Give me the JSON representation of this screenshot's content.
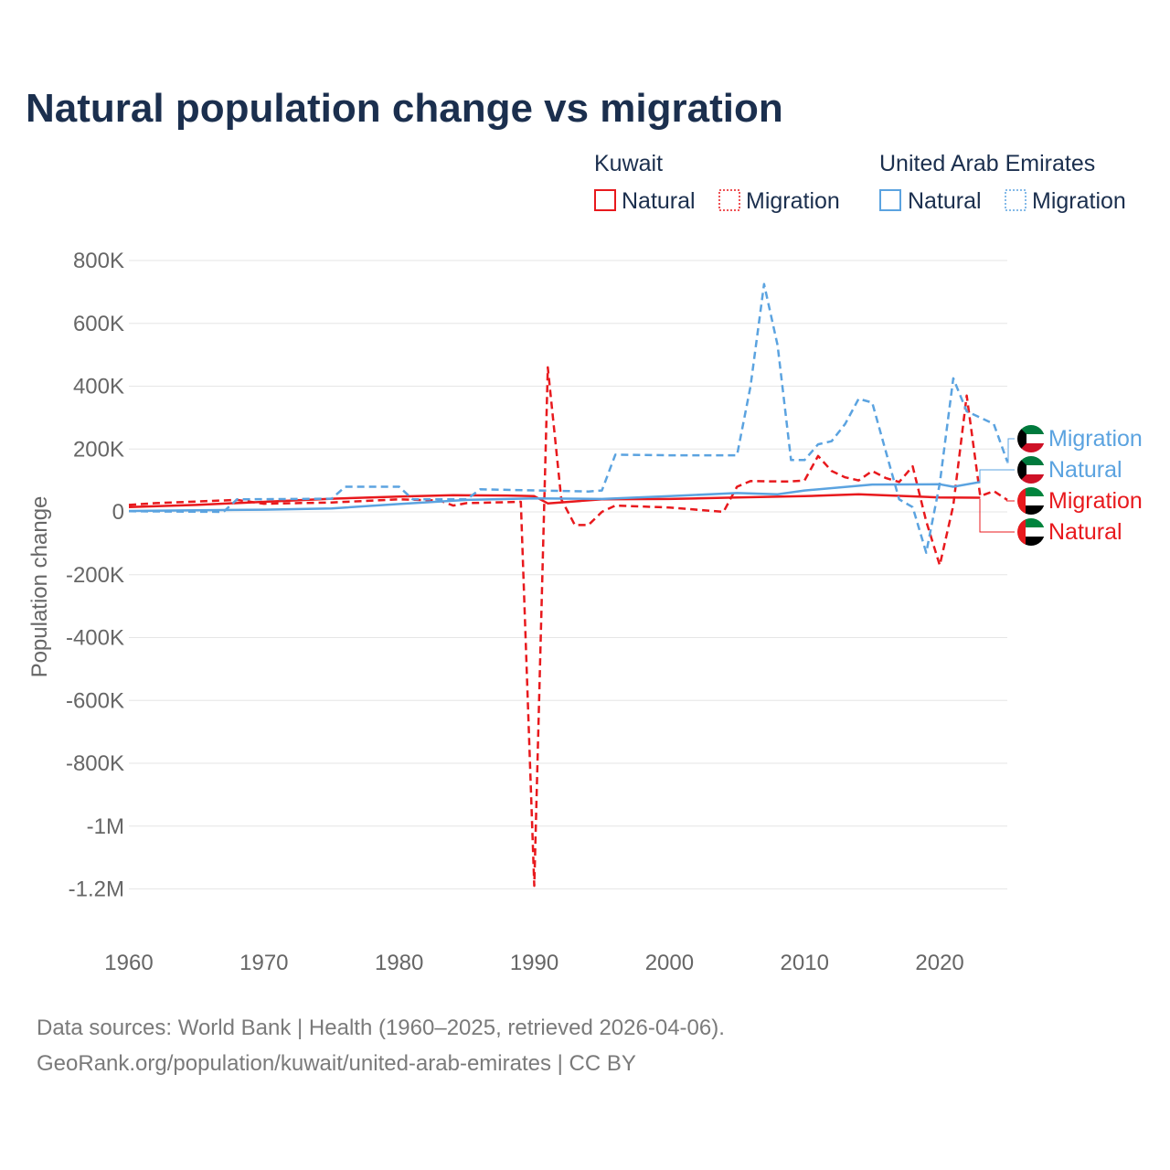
{
  "title": "Natural population change vs migration",
  "legend": {
    "groups": [
      {
        "name": "Kuwait",
        "color": "#e8191d",
        "items": [
          {
            "label": "Natural",
            "style": "solid"
          },
          {
            "label": "Migration",
            "style": "dotted"
          }
        ]
      },
      {
        "name": "United Arab Emirates",
        "color": "#5ba3e0",
        "items": [
          {
            "label": "Natural",
            "style": "solid"
          },
          {
            "label": "Migration",
            "style": "dotted"
          }
        ]
      }
    ]
  },
  "source": {
    "line1": "Data sources: World Bank | Health (1960–2025, retrieved 2026-04-06).",
    "line2": "GeoRank.org/population/kuwait/united-arab-emirates | CC BY"
  },
  "end_labels": [
    {
      "text": "Migration",
      "color": "#5ba3e0",
      "flag": "kuwait"
    },
    {
      "text": "Natural",
      "color": "#5ba3e0",
      "flag": "kuwait"
    },
    {
      "text": "Migration",
      "color": "#e8191d",
      "flag": "uae"
    },
    {
      "text": "Natural",
      "color": "#e8191d",
      "flag": "uae"
    }
  ],
  "chart_data": {
    "type": "line",
    "title": "Natural population change vs migration",
    "xlabel": "",
    "ylabel": "Population change",
    "xlim": [
      1960,
      2025
    ],
    "ylim": [
      -1300000,
      800000
    ],
    "x_ticks": [
      1960,
      1970,
      1980,
      1990,
      2000,
      2010,
      2020
    ],
    "x_tick_labels": [
      "1960",
      "1970",
      "1980",
      "1990",
      "2000",
      "2010",
      "2020"
    ],
    "y_ticks": [
      800000,
      600000,
      400000,
      200000,
      0,
      -200000,
      -400000,
      -600000,
      -800000,
      -1000000,
      -1200000
    ],
    "y_tick_labels": [
      "800K",
      "600K",
      "400K",
      "200K",
      "0",
      "-200K",
      "-400K",
      "-600K",
      "-800K",
      "-1M",
      "-1.2M"
    ],
    "grid": true,
    "series": [
      {
        "name": "Kuwait Natural",
        "country": "Kuwait",
        "kind": "Natural",
        "color": "#e8191d",
        "dash": "solid",
        "x": [
          1960,
          1965,
          1970,
          1975,
          1980,
          1984,
          1988,
          1990,
          1991,
          1995,
          2000,
          2005,
          2010,
          2014,
          2020,
          2023
        ],
        "y": [
          15000,
          22000,
          32000,
          42000,
          49000,
          53000,
          52000,
          50000,
          27000,
          40000,
          41000,
          46000,
          50000,
          56000,
          46000,
          45000
        ]
      },
      {
        "name": "Kuwait Migration",
        "country": "Kuwait",
        "kind": "Migration",
        "color": "#e8191d",
        "dash": "dashed",
        "x": [
          1960,
          1962,
          1968,
          1970,
          1975,
          1980,
          1983,
          1984,
          1985,
          1987,
          1989,
          1990,
          1991,
          1992,
          1993,
          1994,
          1995,
          1996,
          2000,
          2004,
          2005,
          2006,
          2008,
          2009,
          2010,
          2011,
          2012,
          2013,
          2014,
          2015,
          2016,
          2017,
          2018,
          2019,
          2020,
          2021,
          2022,
          2023,
          2024,
          2025
        ],
        "y": [
          22000,
          28000,
          38000,
          26000,
          30000,
          40000,
          36000,
          20000,
          28000,
          30000,
          32000,
          -1190000,
          460000,
          40000,
          -42000,
          -42000,
          0,
          20000,
          14000,
          0,
          80000,
          98000,
          97000,
          97000,
          100000,
          178000,
          130000,
          110000,
          100000,
          130000,
          108000,
          95000,
          145000,
          -30000,
          -170000,
          20000,
          370000,
          50000,
          66000,
          38000
        ]
      },
      {
        "name": "UAE Natural",
        "country": "United Arab Emirates",
        "kind": "Natural",
        "color": "#5ba3e0",
        "dash": "solid",
        "x": [
          1960,
          1965,
          1970,
          1975,
          1980,
          1985,
          1990,
          1995,
          2000,
          2005,
          2008,
          2010,
          2015,
          2020,
          2021,
          2023
        ],
        "y": [
          3000,
          5000,
          7000,
          11000,
          25000,
          38000,
          43000,
          41000,
          50000,
          60000,
          56000,
          68000,
          87000,
          88000,
          80000,
          95000
        ]
      },
      {
        "name": "UAE Migration",
        "country": "United Arab Emirates",
        "kind": "Migration",
        "color": "#5ba3e0",
        "dash": "dashed",
        "x": [
          1960,
          1967,
          1968,
          1975,
          1976,
          1980,
          1981,
          1985,
          1986,
          1994,
          1995,
          1996,
          2000,
          2005,
          2006,
          2007,
          2008,
          2009,
          2010,
          2011,
          2012,
          2013,
          2014,
          2015,
          2017,
          2018,
          2019,
          2020,
          2021,
          2022,
          2024,
          2025
        ],
        "y": [
          2000,
          0,
          40000,
          42000,
          80000,
          80000,
          40000,
          40000,
          72000,
          65000,
          68000,
          182000,
          180000,
          180000,
          400000,
          725000,
          530000,
          165000,
          165000,
          215000,
          225000,
          280000,
          360000,
          348000,
          40000,
          15000,
          -130000,
          90000,
          425000,
          320000,
          280000,
          160000
        ]
      }
    ]
  }
}
